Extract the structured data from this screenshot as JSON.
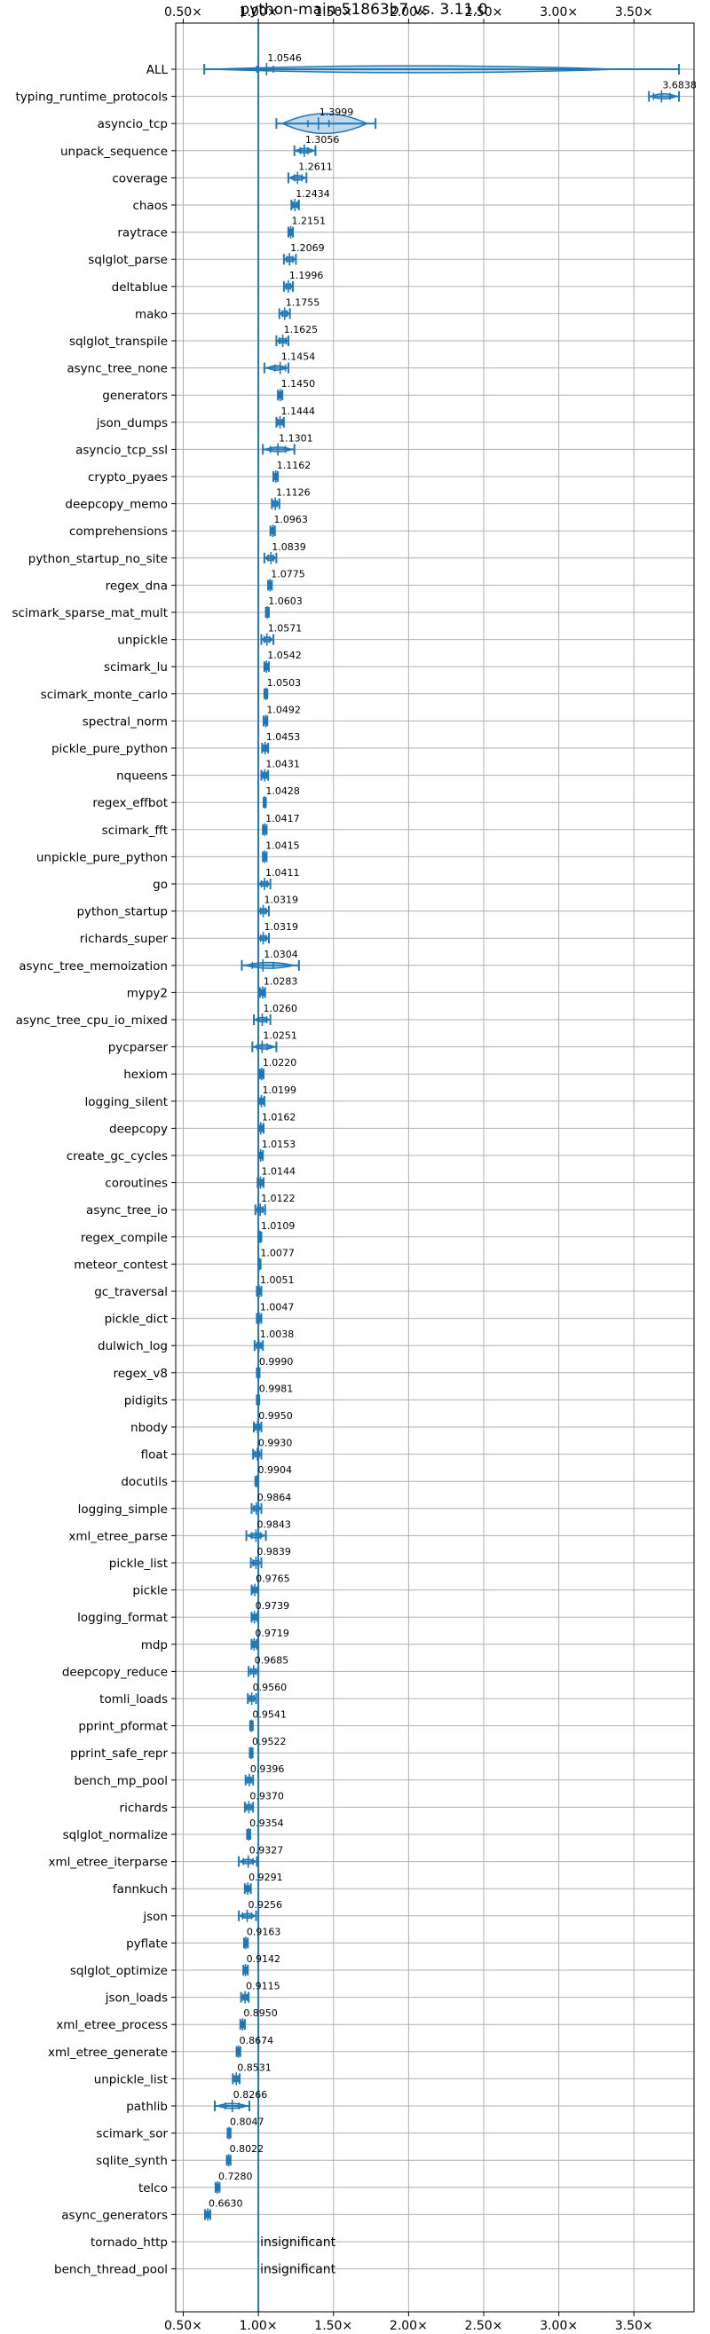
{
  "chart_data": {
    "type": "violin",
    "title": "python-main-51863b7 vs. 3.11.0",
    "xlim": [
      0.45,
      3.9
    ],
    "xticks": [
      0.5,
      1.0,
      1.5,
      2.0,
      2.5,
      3.0,
      3.5
    ],
    "xtick_labels": [
      "0.50×",
      "1.00×",
      "1.50×",
      "2.00×",
      "2.50×",
      "3.00×",
      "3.50×"
    ],
    "xticks_top_and_bottom": true,
    "grid": true,
    "reference_line": 1.0,
    "insignificant_label": "insignificant",
    "benchmarks": [
      {
        "name": "ALL",
        "value": 1.0546,
        "label": "1.0546",
        "low": 0.64,
        "high": 3.8,
        "q1": 0.99,
        "q3": 1.1,
        "w": 0.14
      },
      {
        "name": "typing_runtime_protocols",
        "value": 3.6838,
        "label": "3.6838",
        "low": 3.6,
        "high": 3.8,
        "q1": 3.63,
        "q3": 3.74,
        "w": 0.1
      },
      {
        "name": "asyncio_tcp",
        "value": 1.3999,
        "label": "1.3999",
        "low": 1.12,
        "high": 1.78,
        "q1": 1.33,
        "q3": 1.47,
        "w": 0.4
      },
      {
        "name": "unpack_sequence",
        "value": 1.3056,
        "label": "1.3056",
        "low": 1.24,
        "high": 1.38,
        "q1": 1.28,
        "q3": 1.33,
        "w": 0.06
      },
      {
        "name": "coverage",
        "value": 1.2611,
        "label": "1.2611",
        "low": 1.2,
        "high": 1.32,
        "q1": 1.24,
        "q3": 1.29,
        "w": 0.05
      },
      {
        "name": "chaos",
        "value": 1.2434,
        "label": "1.2434",
        "low": 1.22,
        "high": 1.27,
        "q1": 1.23,
        "q3": 1.26,
        "w": 0.025
      },
      {
        "name": "raytrace",
        "value": 1.2151,
        "label": "1.2151",
        "low": 1.2,
        "high": 1.23,
        "q1": 1.21,
        "q3": 1.22,
        "w": 0.015
      },
      {
        "name": "sqlglot_parse",
        "value": 1.2069,
        "label": "1.2069",
        "low": 1.17,
        "high": 1.25,
        "q1": 1.19,
        "q3": 1.23,
        "w": 0.04
      },
      {
        "name": "deltablue",
        "value": 1.1996,
        "label": "1.1996",
        "low": 1.17,
        "high": 1.23,
        "q1": 1.185,
        "q3": 1.215,
        "w": 0.03
      },
      {
        "name": "mako",
        "value": 1.1755,
        "label": "1.1755",
        "low": 1.14,
        "high": 1.21,
        "q1": 1.16,
        "q3": 1.19,
        "w": 0.035
      },
      {
        "name": "sqlglot_transpile",
        "value": 1.1625,
        "label": "1.1625",
        "low": 1.12,
        "high": 1.2,
        "q1": 1.14,
        "q3": 1.185,
        "w": 0.04
      },
      {
        "name": "async_tree_none",
        "value": 1.1454,
        "label": "1.1454",
        "low": 1.04,
        "high": 1.2,
        "q1": 1.11,
        "q3": 1.18,
        "w": 0.06
      },
      {
        "name": "generators",
        "value": 1.145,
        "label": "1.1450",
        "low": 1.13,
        "high": 1.16,
        "q1": 1.138,
        "q3": 1.152,
        "w": 0.015
      },
      {
        "name": "json_dumps",
        "value": 1.1444,
        "label": "1.1444",
        "low": 1.12,
        "high": 1.17,
        "q1": 1.13,
        "q3": 1.16,
        "w": 0.025
      },
      {
        "name": "asyncio_tcp_ssl",
        "value": 1.1301,
        "label": "1.1301",
        "low": 1.03,
        "high": 1.24,
        "q1": 1.08,
        "q3": 1.18,
        "w": 0.09
      },
      {
        "name": "crypto_pyaes",
        "value": 1.1162,
        "label": "1.1162",
        "low": 1.1,
        "high": 1.13,
        "q1": 1.108,
        "q3": 1.124,
        "w": 0.015
      },
      {
        "name": "deepcopy_memo",
        "value": 1.1126,
        "label": "1.1126",
        "low": 1.09,
        "high": 1.14,
        "q1": 1.1,
        "q3": 1.125,
        "w": 0.025
      },
      {
        "name": "comprehensions",
        "value": 1.0963,
        "label": "1.0963",
        "low": 1.08,
        "high": 1.11,
        "q1": 1.09,
        "q3": 1.103,
        "w": 0.015
      },
      {
        "name": "python_startup_no_site",
        "value": 1.0839,
        "label": "1.0839",
        "low": 1.04,
        "high": 1.12,
        "q1": 1.065,
        "q3": 1.1,
        "w": 0.03
      },
      {
        "name": "regex_dna",
        "value": 1.0775,
        "label": "1.0775",
        "low": 1.065,
        "high": 1.09,
        "q1": 1.072,
        "q3": 1.083,
        "w": 0.012
      },
      {
        "name": "scimark_sparse_mat_mult",
        "value": 1.0603,
        "label": "1.0603",
        "low": 1.05,
        "high": 1.07,
        "q1": 1.056,
        "q3": 1.065,
        "w": 0.01
      },
      {
        "name": "unpickle",
        "value": 1.0571,
        "label": "1.0571",
        "low": 1.02,
        "high": 1.1,
        "q1": 1.04,
        "q3": 1.075,
        "w": 0.035
      },
      {
        "name": "scimark_lu",
        "value": 1.0542,
        "label": "1.0542",
        "low": 1.04,
        "high": 1.07,
        "q1": 1.048,
        "q3": 1.061,
        "w": 0.012
      },
      {
        "name": "scimark_monte_carlo",
        "value": 1.0503,
        "label": "1.0503",
        "low": 1.04,
        "high": 1.06,
        "q1": 1.045,
        "q3": 1.056,
        "w": 0.01
      },
      {
        "name": "spectral_norm",
        "value": 1.0492,
        "label": "1.0492",
        "low": 1.035,
        "high": 1.06,
        "q1": 1.043,
        "q3": 1.055,
        "w": 0.012
      },
      {
        "name": "pickle_pure_python",
        "value": 1.0453,
        "label": "1.0453",
        "low": 1.025,
        "high": 1.065,
        "q1": 1.035,
        "q3": 1.055,
        "w": 0.018
      },
      {
        "name": "nqueens",
        "value": 1.0431,
        "label": "1.0431",
        "low": 1.02,
        "high": 1.065,
        "q1": 1.032,
        "q3": 1.054,
        "w": 0.02
      },
      {
        "name": "regex_effbot",
        "value": 1.0428,
        "label": "1.0428",
        "low": 1.035,
        "high": 1.05,
        "q1": 1.039,
        "q3": 1.047,
        "w": 0.008
      },
      {
        "name": "scimark_fft",
        "value": 1.0417,
        "label": "1.0417",
        "low": 1.03,
        "high": 1.055,
        "q1": 1.036,
        "q3": 1.048,
        "w": 0.01
      },
      {
        "name": "unpickle_pure_python",
        "value": 1.0415,
        "label": "1.0415",
        "low": 1.03,
        "high": 1.055,
        "q1": 1.036,
        "q3": 1.048,
        "w": 0.01
      },
      {
        "name": "go",
        "value": 1.0411,
        "label": "1.0411",
        "low": 1.0,
        "high": 1.08,
        "q1": 1.02,
        "q3": 1.06,
        "w": 0.035
      },
      {
        "name": "python_startup",
        "value": 1.0319,
        "label": "1.0319",
        "low": 1.0,
        "high": 1.07,
        "q1": 1.015,
        "q3": 1.05,
        "w": 0.03
      },
      {
        "name": "richards_super",
        "value": 1.0319,
        "label": "1.0319",
        "low": 1.0,
        "high": 1.07,
        "q1": 1.015,
        "q3": 1.05,
        "w": 0.03
      },
      {
        "name": "async_tree_memoization",
        "value": 1.0304,
        "label": "1.0304",
        "low": 0.89,
        "high": 1.27,
        "q1": 0.96,
        "q3": 1.1,
        "w": 0.12
      },
      {
        "name": "mypy2",
        "value": 1.0283,
        "label": "1.0283",
        "low": 1.01,
        "high": 1.045,
        "q1": 1.02,
        "q3": 1.037,
        "w": 0.015
      },
      {
        "name": "async_tree_cpu_io_mixed",
        "value": 1.026,
        "label": "1.0260",
        "low": 0.97,
        "high": 1.08,
        "q1": 1.0,
        "q3": 1.055,
        "w": 0.05
      },
      {
        "name": "pycparser",
        "value": 1.0251,
        "label": "1.0251",
        "low": 0.96,
        "high": 1.12,
        "q1": 0.995,
        "q3": 1.06,
        "w": 0.05
      },
      {
        "name": "hexiom",
        "value": 1.022,
        "label": "1.0220",
        "low": 1.01,
        "high": 1.035,
        "q1": 1.016,
        "q3": 1.028,
        "w": 0.01
      },
      {
        "name": "logging_silent",
        "value": 1.0199,
        "label": "1.0199",
        "low": 1.0,
        "high": 1.04,
        "q1": 1.01,
        "q3": 1.03,
        "w": 0.018
      },
      {
        "name": "deepcopy",
        "value": 1.0162,
        "label": "1.0162",
        "low": 1.0,
        "high": 1.035,
        "q1": 1.008,
        "q3": 1.025,
        "w": 0.015
      },
      {
        "name": "create_gc_cycles",
        "value": 1.0153,
        "label": "1.0153",
        "low": 1.0,
        "high": 1.03,
        "q1": 1.008,
        "q3": 1.023,
        "w": 0.012
      },
      {
        "name": "coroutines",
        "value": 1.0144,
        "label": "1.0144",
        "low": 0.995,
        "high": 1.035,
        "q1": 1.005,
        "q3": 1.025,
        "w": 0.015
      },
      {
        "name": "async_tree_io",
        "value": 1.0122,
        "label": "1.0122",
        "low": 0.98,
        "high": 1.045,
        "q1": 0.995,
        "q3": 1.03,
        "w": 0.03
      },
      {
        "name": "regex_compile",
        "value": 1.0109,
        "label": "1.0109",
        "low": 1.0,
        "high": 1.02,
        "q1": 1.005,
        "q3": 1.017,
        "w": 0.01
      },
      {
        "name": "meteor_contest",
        "value": 1.0077,
        "label": "1.0077",
        "low": 1.0,
        "high": 1.015,
        "q1": 1.004,
        "q3": 1.011,
        "w": 0.007
      },
      {
        "name": "gc_traversal",
        "value": 1.0051,
        "label": "1.0051",
        "low": 0.99,
        "high": 1.02,
        "q1": 0.998,
        "q3": 1.012,
        "w": 0.012
      },
      {
        "name": "pickle_dict",
        "value": 1.0047,
        "label": "1.0047",
        "low": 0.99,
        "high": 1.02,
        "q1": 0.998,
        "q3": 1.012,
        "w": 0.012
      },
      {
        "name": "dulwich_log",
        "value": 1.0038,
        "label": "1.0038",
        "low": 0.975,
        "high": 1.03,
        "q1": 0.99,
        "q3": 1.018,
        "w": 0.025
      },
      {
        "name": "regex_v8",
        "value": 0.999,
        "label": "0.9990",
        "low": 0.99,
        "high": 1.008,
        "q1": 0.995,
        "q3": 1.004,
        "w": 0.008
      },
      {
        "name": "pidigits",
        "value": 0.9981,
        "label": "0.9981",
        "low": 0.99,
        "high": 1.006,
        "q1": 0.994,
        "q3": 1.002,
        "w": 0.007
      },
      {
        "name": "nbody",
        "value": 0.995,
        "label": "0.9950",
        "low": 0.97,
        "high": 1.02,
        "q1": 0.982,
        "q3": 1.008,
        "w": 0.022
      },
      {
        "name": "float",
        "value": 0.993,
        "label": "0.9930",
        "low": 0.965,
        "high": 1.02,
        "q1": 0.978,
        "q3": 1.006,
        "w": 0.025
      },
      {
        "name": "docutils",
        "value": 0.9904,
        "label": "0.9904",
        "low": 0.98,
        "high": 1.0,
        "q1": 0.985,
        "q3": 0.995,
        "w": 0.01
      },
      {
        "name": "logging_simple",
        "value": 0.9864,
        "label": "0.9864",
        "low": 0.955,
        "high": 1.02,
        "q1": 0.97,
        "q3": 1.002,
        "w": 0.03
      },
      {
        "name": "xml_etree_parse",
        "value": 0.9843,
        "label": "0.9843",
        "low": 0.92,
        "high": 1.05,
        "q1": 0.955,
        "q3": 1.015,
        "w": 0.05
      },
      {
        "name": "pickle_list",
        "value": 0.9839,
        "label": "0.9839",
        "low": 0.95,
        "high": 1.02,
        "q1": 0.965,
        "q3": 1.002,
        "w": 0.03
      },
      {
        "name": "pickle",
        "value": 0.9765,
        "label": "0.9765",
        "low": 0.955,
        "high": 1.0,
        "q1": 0.965,
        "q3": 0.988,
        "w": 0.02
      },
      {
        "name": "logging_format",
        "value": 0.9739,
        "label": "0.9739",
        "low": 0.955,
        "high": 0.995,
        "q1": 0.963,
        "q3": 0.985,
        "w": 0.018
      },
      {
        "name": "mdp",
        "value": 0.9719,
        "label": "0.9719",
        "low": 0.955,
        "high": 0.99,
        "q1": 0.963,
        "q3": 0.981,
        "w": 0.015
      },
      {
        "name": "deepcopy_reduce",
        "value": 0.9685,
        "label": "0.9685",
        "low": 0.935,
        "high": 1.0,
        "q1": 0.95,
        "q3": 0.985,
        "w": 0.03
      },
      {
        "name": "tomli_loads",
        "value": 0.956,
        "label": "0.9560",
        "low": 0.93,
        "high": 0.985,
        "q1": 0.943,
        "q3": 0.97,
        "w": 0.025
      },
      {
        "name": "pprint_pformat",
        "value": 0.9541,
        "label": "0.9541",
        "low": 0.945,
        "high": 0.963,
        "q1": 0.95,
        "q3": 0.958,
        "w": 0.008
      },
      {
        "name": "pprint_safe_repr",
        "value": 0.9522,
        "label": "0.9522",
        "low": 0.943,
        "high": 0.962,
        "q1": 0.948,
        "q3": 0.957,
        "w": 0.008
      },
      {
        "name": "bench_mp_pool",
        "value": 0.9396,
        "label": "0.9396",
        "low": 0.915,
        "high": 0.965,
        "q1": 0.927,
        "q3": 0.952,
        "w": 0.022
      },
      {
        "name": "richards",
        "value": 0.937,
        "label": "0.9370",
        "low": 0.91,
        "high": 0.965,
        "q1": 0.922,
        "q3": 0.952,
        "w": 0.025
      },
      {
        "name": "sqlglot_normalize",
        "value": 0.9354,
        "label": "0.9354",
        "low": 0.925,
        "high": 0.946,
        "q1": 0.93,
        "q3": 0.941,
        "w": 0.01
      },
      {
        "name": "xml_etree_iterparse",
        "value": 0.9327,
        "label": "0.9327",
        "low": 0.87,
        "high": 0.99,
        "q1": 0.9,
        "q3": 0.965,
        "w": 0.05
      },
      {
        "name": "fannkuch",
        "value": 0.9291,
        "label": "0.9291",
        "low": 0.91,
        "high": 0.95,
        "q1": 0.92,
        "q3": 0.939,
        "w": 0.016
      },
      {
        "name": "json",
        "value": 0.9256,
        "label": "0.9256",
        "low": 0.87,
        "high": 0.985,
        "q1": 0.895,
        "q3": 0.955,
        "w": 0.05
      },
      {
        "name": "pyflate",
        "value": 0.9163,
        "label": "0.9163",
        "low": 0.905,
        "high": 0.93,
        "q1": 0.911,
        "q3": 0.922,
        "w": 0.01
      },
      {
        "name": "sqlglot_optimize",
        "value": 0.9142,
        "label": "0.9142",
        "low": 0.9,
        "high": 0.93,
        "q1": 0.907,
        "q3": 0.921,
        "w": 0.012
      },
      {
        "name": "json_loads",
        "value": 0.9115,
        "label": "0.9115",
        "low": 0.885,
        "high": 0.935,
        "q1": 0.898,
        "q3": 0.924,
        "w": 0.022
      },
      {
        "name": "xml_etree_process",
        "value": 0.895,
        "label": "0.8950",
        "low": 0.88,
        "high": 0.91,
        "q1": 0.888,
        "q3": 0.902,
        "w": 0.012
      },
      {
        "name": "xml_etree_generate",
        "value": 0.8674,
        "label": "0.8674",
        "low": 0.855,
        "high": 0.88,
        "q1": 0.862,
        "q3": 0.873,
        "w": 0.01
      },
      {
        "name": "unpickle_list",
        "value": 0.8531,
        "label": "0.8531",
        "low": 0.83,
        "high": 0.875,
        "q1": 0.842,
        "q3": 0.864,
        "w": 0.02
      },
      {
        "name": "pathlib",
        "value": 0.8266,
        "label": "0.8266",
        "low": 0.71,
        "high": 0.94,
        "q1": 0.78,
        "q3": 0.87,
        "w": 0.1
      },
      {
        "name": "scimark_sor",
        "value": 0.8047,
        "label": "0.8047",
        "low": 0.795,
        "high": 0.815,
        "q1": 0.8,
        "q3": 0.81,
        "w": 0.008
      },
      {
        "name": "sqlite_synth",
        "value": 0.8022,
        "label": "0.8022",
        "low": 0.79,
        "high": 0.815,
        "q1": 0.796,
        "q3": 0.808,
        "w": 0.01
      },
      {
        "name": "telco",
        "value": 0.728,
        "label": "0.7280",
        "low": 0.715,
        "high": 0.742,
        "q1": 0.721,
        "q3": 0.735,
        "w": 0.012
      },
      {
        "name": "async_generators",
        "value": 0.663,
        "label": "0.6630",
        "low": 0.645,
        "high": 0.68,
        "q1": 0.654,
        "q3": 0.672,
        "w": 0.015
      },
      {
        "name": "tornado_http",
        "value": null,
        "label": "insignificant"
      },
      {
        "name": "bench_thread_pool",
        "value": null,
        "label": "insignificant"
      }
    ]
  }
}
